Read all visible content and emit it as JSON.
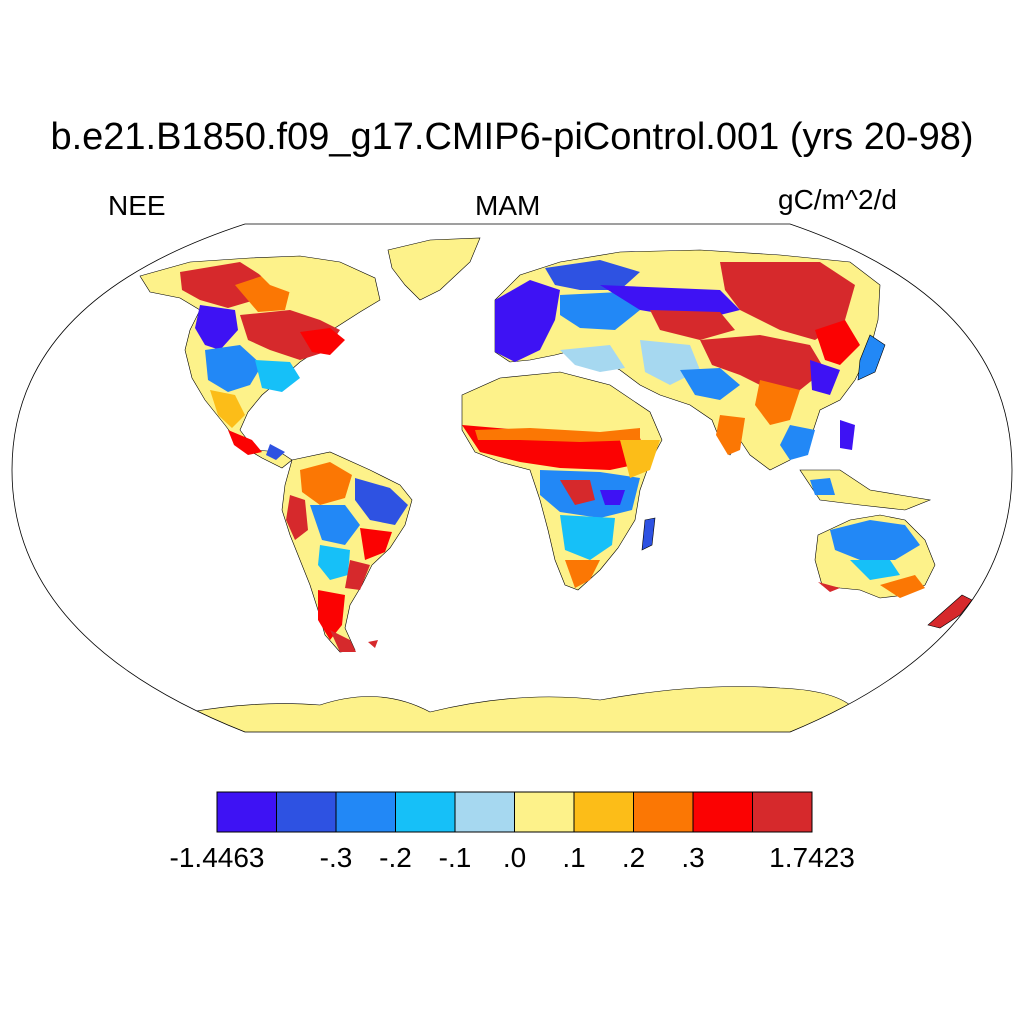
{
  "title": "b.e21.B1850.f09_g17.CMIP6-piControl.001 (yrs 20-98)",
  "variable": "NEE",
  "season": "MAM",
  "units": "gC/m^2/d",
  "colorbar": {
    "colors": [
      "#3e12f4",
      "#2e52e2",
      "#2288f6",
      "#16c0f8",
      "#a6d8f0",
      "#fdf28a",
      "#fcbd18",
      "#fb7704",
      "#fb0202",
      "#d6292c"
    ],
    "labels": [
      "-1.4463",
      "-.3",
      "-.2",
      "-.1",
      ".0",
      ".1",
      ".2",
      ".3",
      "1.7423"
    ]
  },
  "colors": {
    "ocean": "#ffffff",
    "outline": "#000000",
    "antarctica": "#fdf28a"
  }
}
